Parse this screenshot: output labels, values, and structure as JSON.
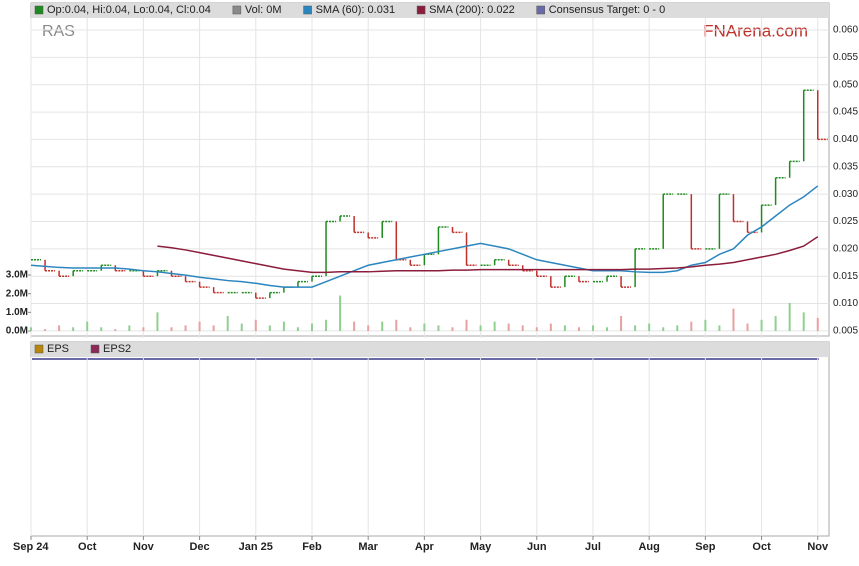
{
  "chart_data": {
    "type": "ohlc",
    "ticker": "RAS",
    "watermark": "FNArena.com",
    "x": [
      0,
      0.25,
      0.5,
      0.75,
      1,
      1.25,
      1.5,
      1.75,
      2,
      2.25,
      2.5,
      2.75,
      3,
      3.25,
      3.5,
      3.75,
      4,
      4.25,
      4.5,
      4.75,
      5,
      5.25,
      5.5,
      5.75,
      6,
      6.25,
      6.5,
      6.75,
      7,
      7.25,
      7.5,
      7.75,
      8,
      8.25,
      8.5,
      8.75,
      9,
      9.25,
      9.5,
      9.75,
      10,
      10.25,
      10.5,
      10.75,
      11,
      11.25,
      11.5,
      11.75,
      12,
      12.25,
      12.5,
      12.75,
      13,
      13.25,
      13.5,
      13.75,
      14
    ],
    "xlim": [
      0,
      14.2
    ],
    "xticks": [
      {
        "value": 0,
        "label": "Sep 24"
      },
      {
        "value": 1,
        "label": "Oct"
      },
      {
        "value": 2,
        "label": "Nov"
      },
      {
        "value": 3,
        "label": "Dec"
      },
      {
        "value": 4,
        "label": "Jan 25"
      },
      {
        "value": 5,
        "label": "Feb"
      },
      {
        "value": 6,
        "label": "Mar"
      },
      {
        "value": 7,
        "label": "Apr"
      },
      {
        "value": 8,
        "label": "May"
      },
      {
        "value": 9,
        "label": "Jun"
      },
      {
        "value": 10,
        "label": "Jul"
      },
      {
        "value": 11,
        "label": "Aug"
      },
      {
        "value": 12,
        "label": "Sep"
      },
      {
        "value": 13,
        "label": "Oct"
      },
      {
        "value": 14,
        "label": "Nov"
      }
    ],
    "ylim": [
      0.0037,
      0.0622
    ],
    "yticks": [
      {
        "value": 0.005,
        "label": "0.005"
      },
      {
        "value": 0.01,
        "label": "0.010"
      },
      {
        "value": 0.015,
        "label": "0.015"
      },
      {
        "value": 0.02,
        "label": "0.020"
      },
      {
        "value": 0.025,
        "label": "0.025"
      },
      {
        "value": 0.03,
        "label": "0.030"
      },
      {
        "value": 0.035,
        "label": "0.035"
      },
      {
        "value": 0.04,
        "label": "0.040"
      },
      {
        "value": 0.045,
        "label": "0.045"
      },
      {
        "value": 0.05,
        "label": "0.050"
      },
      {
        "value": 0.055,
        "label": "0.055"
      },
      {
        "value": 0.06,
        "label": "0.060"
      }
    ],
    "y2lim": [
      -0.375,
      16.77
    ],
    "y2ticks": [
      {
        "value": 0,
        "label": "0.0M"
      },
      {
        "value": 1,
        "label": "1.0M"
      },
      {
        "value": 2,
        "label": "2.0M"
      },
      {
        "value": 3,
        "label": "3.0M"
      }
    ],
    "grid": true,
    "series": [
      {
        "name": "Op:0.04, Hi:0.04, Lo:0.04, Cl:0.04",
        "color": "#1f8a1f",
        "down_color": "#c0302a",
        "values": [
          0.018,
          0.016,
          0.015,
          0.016,
          0.016,
          0.017,
          0.016,
          0.016,
          0.015,
          0.016,
          0.015,
          0.014,
          0.013,
          0.012,
          0.012,
          0.012,
          0.011,
          0.012,
          0.013,
          0.014,
          0.015,
          0.025,
          0.026,
          0.023,
          0.022,
          0.025,
          0.018,
          0.017,
          0.019,
          0.024,
          0.023,
          0.017,
          0.017,
          0.018,
          0.017,
          0.016,
          0.015,
          0.013,
          0.015,
          0.014,
          0.014,
          0.015,
          0.013,
          0.02,
          0.02,
          0.03,
          0.03,
          0.02,
          0.02,
          0.03,
          0.025,
          0.023,
          0.028,
          0.033,
          0.036,
          0.049,
          0.04
        ]
      },
      {
        "name": "Vol: 0M",
        "color": "#8a8a8a",
        "axis": "y2",
        "values": [
          0.2,
          0.1,
          0.3,
          0.2,
          0.5,
          0.2,
          0.1,
          0.3,
          0.2,
          1.0,
          0.2,
          0.3,
          0.5,
          0.3,
          0.8,
          0.4,
          0.6,
          0.3,
          0.5,
          0.2,
          0.4,
          0.6,
          1.9,
          0.5,
          0.3,
          0.5,
          0.6,
          0.2,
          0.4,
          0.3,
          0.2,
          0.6,
          0.3,
          0.5,
          0.4,
          0.3,
          0.2,
          0.4,
          0.3,
          0.2,
          0.3,
          0.2,
          0.8,
          0.3,
          0.4,
          0.2,
          0.3,
          0.5,
          0.6,
          0.3,
          1.2,
          0.4,
          0.6,
          0.8,
          1.5,
          1.0,
          0.7
        ]
      },
      {
        "name": "SMA (60): 0.031",
        "color": "#2b86c0",
        "values": [
          0.017,
          0.0168,
          0.0166,
          0.0165,
          0.0165,
          0.0165,
          0.0165,
          0.0163,
          0.016,
          0.0158,
          0.0155,
          0.0152,
          0.0148,
          0.0145,
          0.0142,
          0.014,
          0.0137,
          0.0133,
          0.013,
          0.013,
          0.013,
          0.014,
          0.015,
          0.016,
          0.017,
          0.0175,
          0.018,
          0.0185,
          0.019,
          0.0195,
          0.02,
          0.0205,
          0.021,
          0.0205,
          0.02,
          0.019,
          0.018,
          0.0175,
          0.017,
          0.0165,
          0.016,
          0.016,
          0.016,
          0.0158,
          0.0157,
          0.0157,
          0.016,
          0.017,
          0.0175,
          0.019,
          0.02,
          0.0225,
          0.024,
          0.026,
          0.028,
          0.0295,
          0.0315
        ]
      },
      {
        "name": "SMA (200): 0.022",
        "color": "#8b1c3c",
        "values": [
          null,
          null,
          null,
          null,
          null,
          null,
          null,
          null,
          null,
          0.0205,
          0.0202,
          0.0198,
          0.0193,
          0.0188,
          0.0183,
          0.0178,
          0.0173,
          0.0168,
          0.0163,
          0.016,
          0.0157,
          0.0157,
          0.0158,
          0.0158,
          0.0158,
          0.0159,
          0.016,
          0.016,
          0.016,
          0.016,
          0.0161,
          0.0161,
          0.0162,
          0.0162,
          0.0162,
          0.0162,
          0.0162,
          0.0162,
          0.0162,
          0.0162,
          0.0162,
          0.0162,
          0.0162,
          0.0163,
          0.0163,
          0.0164,
          0.0165,
          0.0167,
          0.017,
          0.0172,
          0.0175,
          0.018,
          0.0185,
          0.019,
          0.0197,
          0.0205,
          0.0222
        ]
      }
    ],
    "consensus": {
      "name": "Consensus Target: 0 - 0",
      "color": "#6a6aa8"
    },
    "eps_series": [
      {
        "name": "EPS",
        "color": "#b8860b"
      },
      {
        "name": "EPS2",
        "color": "#8b2a5a"
      }
    ]
  }
}
